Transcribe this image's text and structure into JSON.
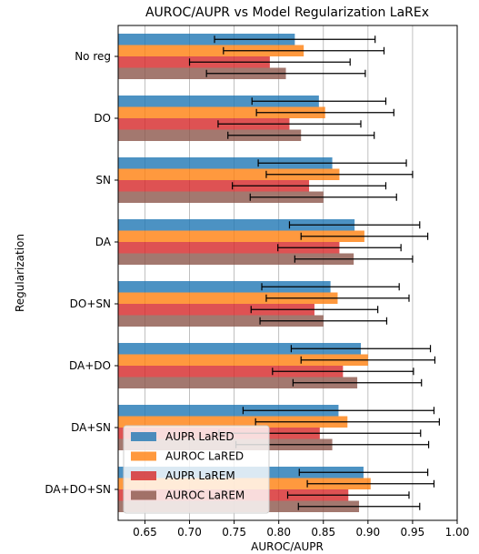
{
  "chart_data": {
    "type": "bar",
    "orientation": "horizontal",
    "title": "AUROC/AUPR vs Model Regularization LaREx",
    "xlabel": "AUROC/AUPR",
    "ylabel": "Regularization",
    "xlim": [
      0.62,
      1.0
    ],
    "xticks": [
      "0.65",
      "0.70",
      "0.75",
      "0.80",
      "0.85",
      "0.90",
      "0.95",
      "1.00"
    ],
    "grid": "vertical",
    "legend_position": "lower-left",
    "categories": [
      "No reg",
      "DO",
      "SN",
      "DA",
      "DO+SN",
      "DA+DO",
      "DA+SN",
      "DA+DO+SN"
    ],
    "series": [
      {
        "name": "AUPR LaRED",
        "color": "#1f77b4",
        "values": [
          0.818,
          0.845,
          0.86,
          0.885,
          0.858,
          0.892,
          0.867,
          0.895
        ],
        "errors": [
          0.09,
          0.075,
          0.083,
          0.073,
          0.077,
          0.078,
          0.107,
          0.072
        ]
      },
      {
        "name": "AUROC LaRED",
        "color": "#ff7f0e",
        "values": [
          0.828,
          0.852,
          0.868,
          0.896,
          0.866,
          0.9,
          0.877,
          0.903
        ],
        "errors": [
          0.09,
          0.077,
          0.082,
          0.071,
          0.08,
          0.075,
          0.103,
          0.071
        ]
      },
      {
        "name": "AUPR LaREM",
        "color": "#d62728",
        "values": [
          0.79,
          0.812,
          0.834,
          0.868,
          0.84,
          0.872,
          0.846,
          0.878
        ],
        "errors": [
          0.09,
          0.08,
          0.086,
          0.069,
          0.071,
          0.079,
          0.113,
          0.068
        ]
      },
      {
        "name": "AUROC LaREM",
        "color": "#8c564b",
        "values": [
          0.808,
          0.825,
          0.85,
          0.884,
          0.85,
          0.888,
          0.86,
          0.89
        ],
        "errors": [
          0.089,
          0.082,
          0.082,
          0.066,
          0.071,
          0.072,
          0.108,
          0.068
        ]
      }
    ]
  }
}
